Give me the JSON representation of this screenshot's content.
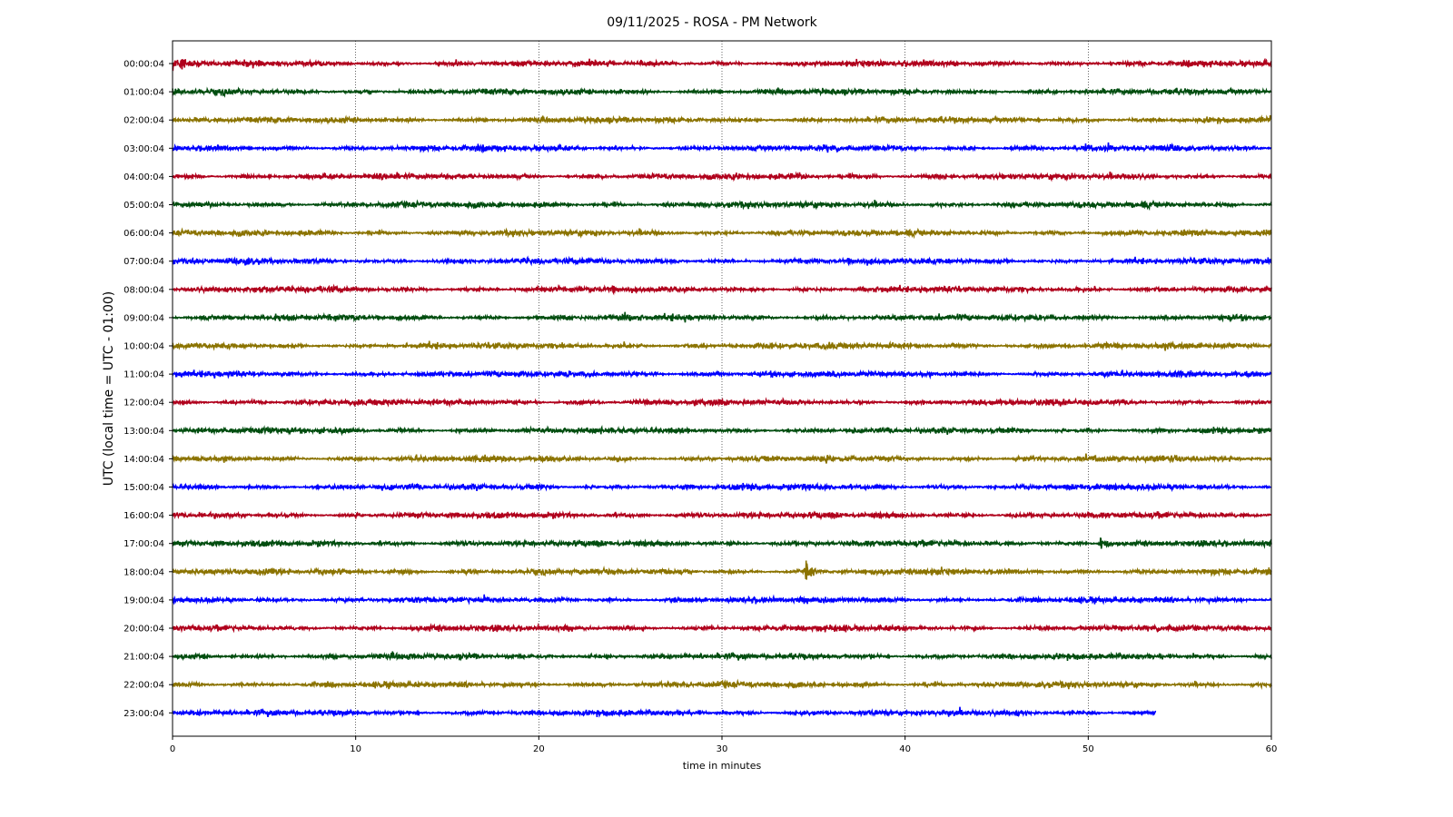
{
  "chart_data": {
    "type": "line",
    "title": "09/11/2025 - ROSA - PM Network",
    "xlabel": "time in minutes",
    "ylabel": "UTC (local time = UTC - 01:00)",
    "xlim": [
      0,
      60
    ],
    "xticks": [
      "0",
      "10",
      "20",
      "30",
      "40",
      "50",
      "60"
    ],
    "grid": "vertical dotted lines at x ticks",
    "colors": [
      "#b0001c",
      "#004d0f",
      "#8b7300",
      "#0000ff"
    ],
    "rows": [
      {
        "label": "00:00:04",
        "end_minute": 60,
        "color_index": 0
      },
      {
        "label": "01:00:04",
        "end_minute": 60,
        "color_index": 1
      },
      {
        "label": "02:00:04",
        "end_minute": 60,
        "color_index": 2
      },
      {
        "label": "03:00:04",
        "end_minute": 60,
        "color_index": 3
      },
      {
        "label": "04:00:04",
        "end_minute": 60,
        "color_index": 0
      },
      {
        "label": "05:00:04",
        "end_minute": 60,
        "color_index": 1
      },
      {
        "label": "06:00:04",
        "end_minute": 60,
        "color_index": 2
      },
      {
        "label": "07:00:04",
        "end_minute": 60,
        "color_index": 3
      },
      {
        "label": "08:00:04",
        "end_minute": 60,
        "color_index": 0
      },
      {
        "label": "09:00:04",
        "end_minute": 60,
        "color_index": 1
      },
      {
        "label": "10:00:04",
        "end_minute": 60,
        "color_index": 2
      },
      {
        "label": "11:00:04",
        "end_minute": 60,
        "color_index": 3
      },
      {
        "label": "12:00:04",
        "end_minute": 60,
        "color_index": 0
      },
      {
        "label": "13:00:04",
        "end_minute": 60,
        "color_index": 1
      },
      {
        "label": "14:00:04",
        "end_minute": 60,
        "color_index": 2
      },
      {
        "label": "15:00:04",
        "end_minute": 60,
        "color_index": 3
      },
      {
        "label": "16:00:04",
        "end_minute": 60,
        "color_index": 0
      },
      {
        "label": "17:00:04",
        "end_minute": 60,
        "color_index": 1,
        "event_minute": 50.7
      },
      {
        "label": "18:00:04",
        "end_minute": 60,
        "color_index": 2,
        "event_minute": 34.6
      },
      {
        "label": "19:00:04",
        "end_minute": 60,
        "color_index": 3
      },
      {
        "label": "20:00:04",
        "end_minute": 60,
        "color_index": 0
      },
      {
        "label": "21:00:04",
        "end_minute": 60,
        "color_index": 1
      },
      {
        "label": "22:00:04",
        "end_minute": 60,
        "color_index": 2
      },
      {
        "label": "23:00:04",
        "end_minute": 53.7,
        "color_index": 3
      }
    ]
  }
}
